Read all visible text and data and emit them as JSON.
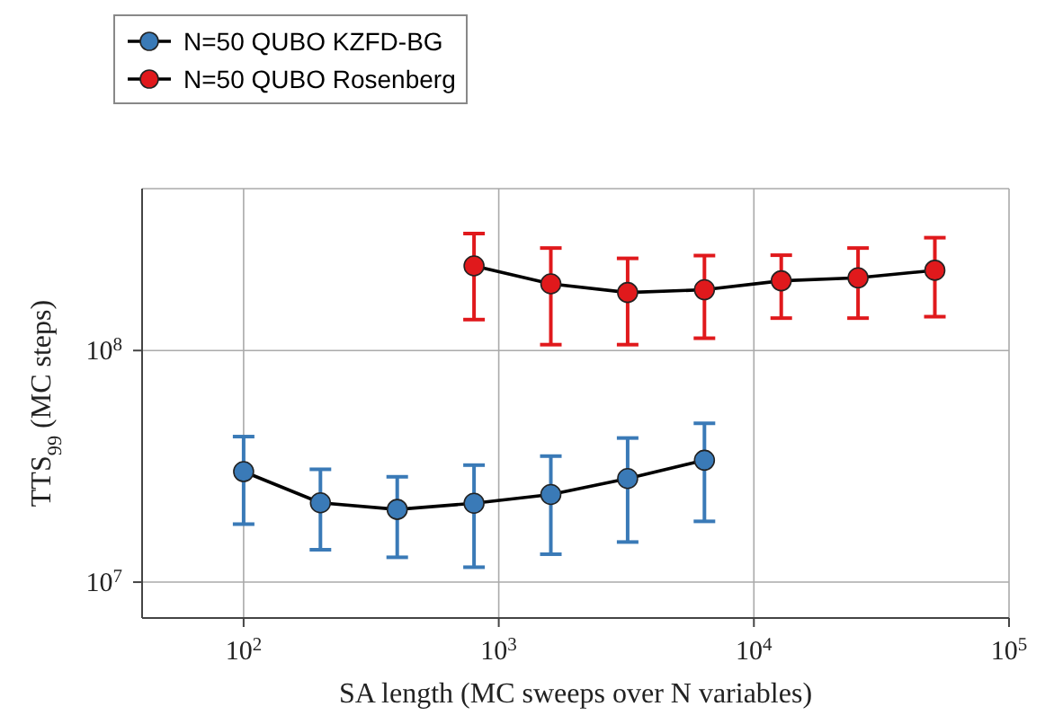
{
  "chart_data": {
    "type": "line",
    "xlabel": "SA length (MC sweeps over N variables)",
    "ylabel": "TTS$_{99}$ (MC steps)",
    "log": "xy",
    "grid": true,
    "legend": "top left",
    "marker": "circle",
    "line_style": "solid",
    "xlim": [
      40,
      100000
    ],
    "xticks": [
      {
        "value": 100,
        "label": "10$^{2}$"
      },
      {
        "value": 1000,
        "label": "10$^{3}$"
      },
      {
        "value": 10000,
        "label": "10$^{4}$"
      },
      {
        "value": 100000,
        "label": "10$^{5}$"
      }
    ],
    "ylim": [
      7000000,
      500000000
    ],
    "yticks": [
      {
        "value": 10000000,
        "label": "10$^{7}$"
      },
      {
        "value": 100000000,
        "label": "10$^{8}$"
      }
    ],
    "series": [
      {
        "name": "N=50 QUBO KZFD-BG",
        "color": "#3a7ab7",
        "x": [
          100,
          200,
          400,
          800,
          1600,
          3200,
          6400
        ],
        "values": [
          30000000,
          22000000,
          20600000,
          21900000,
          23900000,
          28000000,
          33600000
        ],
        "errors": [
          [
            17800000,
            42500000
          ],
          [
            13800000,
            30700000
          ],
          [
            12800000,
            28500000
          ],
          [
            11600000,
            32000000
          ],
          [
            13200000,
            35000000
          ],
          [
            14900000,
            41900000
          ],
          [
            18300000,
            48500000
          ]
        ]
      },
      {
        "name": "N=50 QUBO Rosenberg",
        "color": "#e0191c",
        "x": [
          800,
          1600,
          3200,
          6400,
          12800,
          25600,
          51200
        ],
        "values": [
          232000000,
          194000000,
          178000000,
          183000000,
          200000000,
          206000000,
          222000000
        ],
        "errors": [
          [
            136000000,
            320000000
          ],
          [
            106000000,
            277000000
          ],
          [
            106000000,
            250000000
          ],
          [
            113000000,
            257000000
          ],
          [
            138000000,
            258000000
          ],
          [
            138000000,
            277000000
          ],
          [
            140000000,
            307000000
          ]
        ]
      }
    ]
  }
}
